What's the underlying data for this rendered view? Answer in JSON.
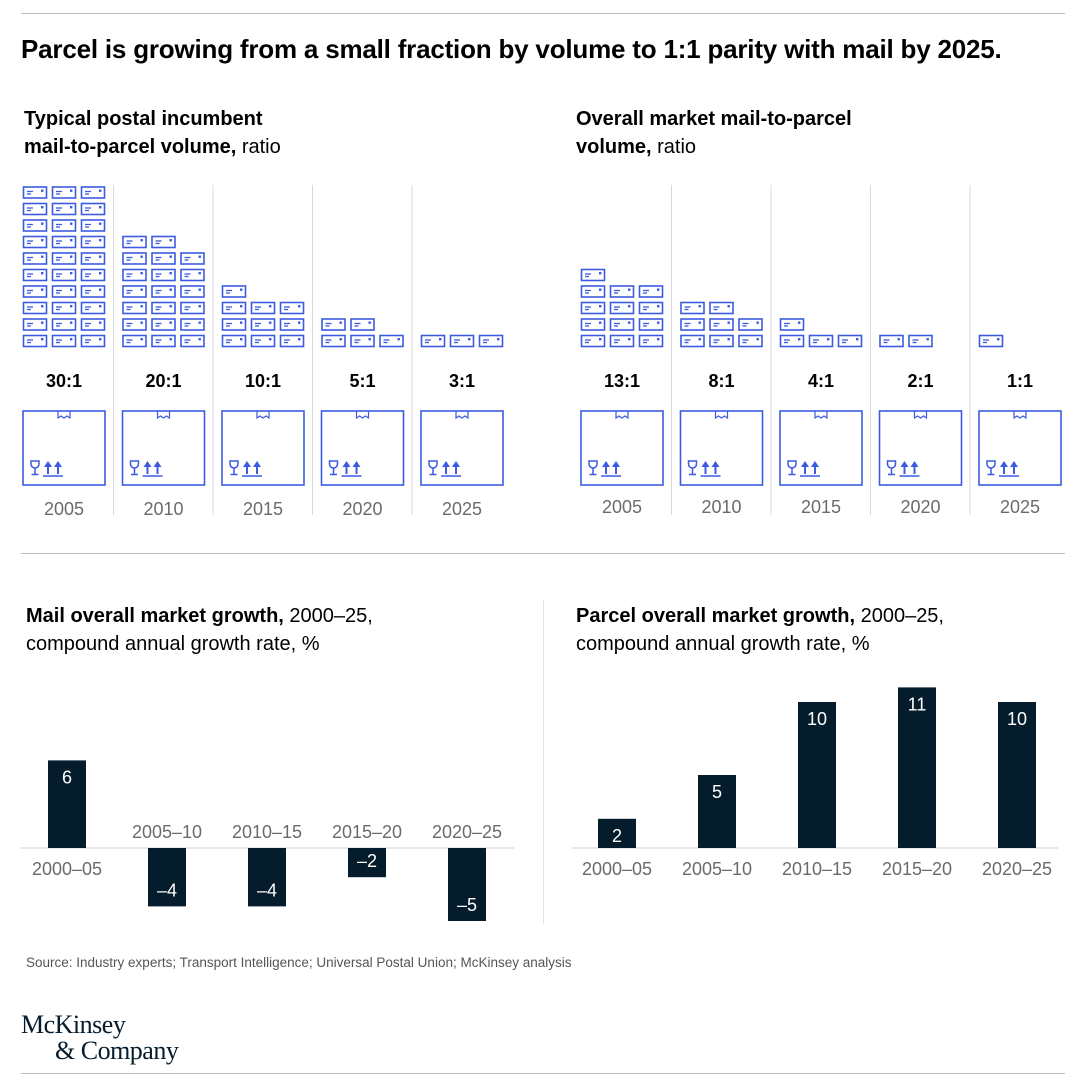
{
  "title": "Parcel is growing from a small fraction by volume to 1:1 parity with mail by 2025.",
  "colors": {
    "icon": "#3c5be0",
    "bar": "#051c2c",
    "divider": "#d9d9d9",
    "muted": "#6b6b6b"
  },
  "panels": {
    "incumbent": {
      "title_bold_1": "Typical postal incumbent",
      "title_bold_2": "mail-to-parcel volume,",
      "title_regular": " ratio"
    },
    "market": {
      "title_bold_1": "Overall market mail-to-parcel",
      "title_bold_2": "volume,",
      "title_regular": " ratio"
    },
    "mail_growth": {
      "title_bold": "Mail overall market growth,",
      "title_regular_1": " 2000–25,",
      "title_regular_2": "compound annual growth rate, %"
    },
    "parcel_growth": {
      "title_bold": "Parcel overall market growth,",
      "title_regular_1": " 2000–25,",
      "title_regular_2": "compound annual growth rate, %"
    }
  },
  "chart_data": [
    {
      "type": "pictogram",
      "title": "Typical postal incumbent mail-to-parcel volume, ratio",
      "categories": [
        "2005",
        "2010",
        "2015",
        "2020",
        "2025"
      ],
      "ratio_labels": [
        "30:1",
        "20:1",
        "10:1",
        "5:1",
        "3:1"
      ],
      "mail_per_parcel": [
        30,
        20,
        10,
        5,
        3
      ],
      "icons": {
        "mail": "envelope-icon",
        "parcel": "parcel-box-icon"
      }
    },
    {
      "type": "pictogram",
      "title": "Overall market mail-to-parcel volume, ratio",
      "categories": [
        "2005",
        "2010",
        "2015",
        "2020",
        "2025"
      ],
      "ratio_labels": [
        "13:1",
        "8:1",
        "4:1",
        "2:1",
        "1:1"
      ],
      "mail_per_parcel": [
        13,
        8,
        4,
        2,
        1
      ],
      "icons": {
        "mail": "envelope-icon",
        "parcel": "parcel-box-icon"
      }
    },
    {
      "type": "bar",
      "title": "Mail overall market growth, 2000–25, compound annual growth rate, %",
      "categories": [
        "2000–05",
        "2005–10",
        "2010–15",
        "2015–20",
        "2020–25"
      ],
      "values": [
        6,
        -4,
        -4,
        -2,
        -5
      ],
      "value_labels": [
        "6",
        "–4",
        "–4",
        "–2",
        "–5"
      ],
      "ylim": [
        -5,
        11
      ]
    },
    {
      "type": "bar",
      "title": "Parcel overall market growth, 2000–25, compound annual growth rate, %",
      "categories": [
        "2000–05",
        "2005–10",
        "2010–15",
        "2015–20",
        "2020–25"
      ],
      "values": [
        2,
        5,
        10,
        11,
        10
      ],
      "value_labels": [
        "2",
        "5",
        "10",
        "11",
        "10"
      ],
      "ylim": [
        -5,
        11
      ]
    }
  ],
  "source": "Source: Industry experts; Transport Intelligence; Universal Postal Union; McKinsey analysis",
  "logo": {
    "line1": "McKinsey",
    "line2": "& Company"
  }
}
